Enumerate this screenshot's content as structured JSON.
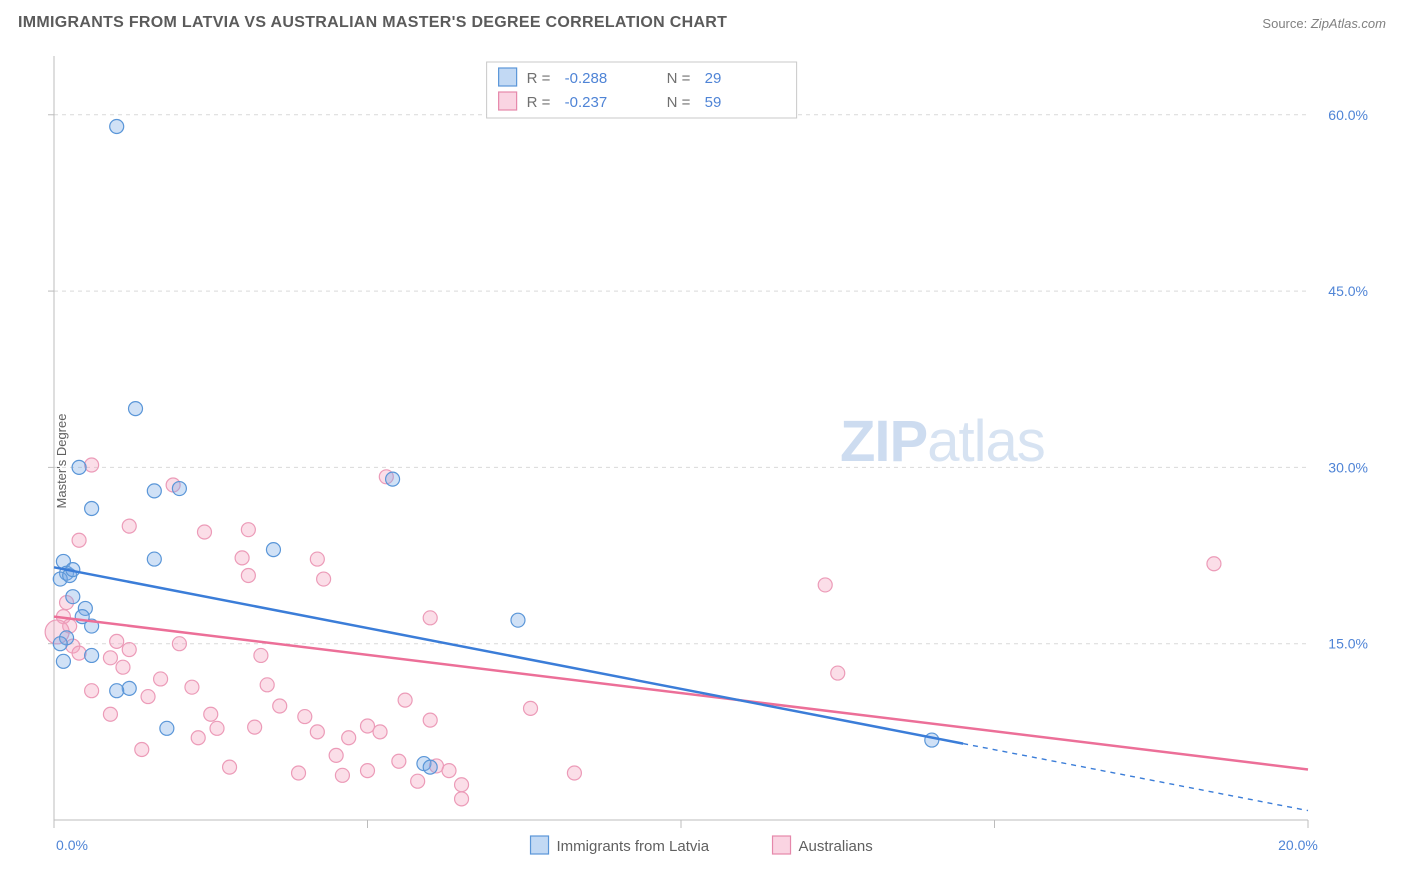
{
  "header": {
    "title": "IMMIGRANTS FROM LATVIA VS AUSTRALIAN MASTER'S DEGREE CORRELATION CHART",
    "source_label": "Source:",
    "source_value": "ZipAtlas.com"
  },
  "chart": {
    "type": "scatter",
    "ylabel": "Master's Degree",
    "background_color": "#ffffff",
    "grid_color": "#d9d9d9",
    "axis_color": "#bcbcbc",
    "tick_label_color": "#4f84d6",
    "xlim": [
      0,
      20
    ],
    "ylim": [
      0,
      65
    ],
    "x_ticks": [
      0,
      5,
      10,
      15,
      20
    ],
    "x_tick_labels": [
      "0.0%",
      "",
      "",
      "",
      "20.0%"
    ],
    "y_ticks": [
      15,
      30,
      45,
      60
    ],
    "y_tick_labels": [
      "15.0%",
      "30.0%",
      "45.0%",
      "60.0%"
    ],
    "watermark": {
      "zip": "ZIP",
      "atlas": "atlas",
      "color": "#d7e3f2"
    },
    "legend_top": {
      "box_stroke": "#c8c8c8",
      "series": [
        {
          "swatch": "blue",
          "r_label": "R =",
          "r_value": "-0.288",
          "n_label": "N =",
          "n_value": "29"
        },
        {
          "swatch": "pink",
          "r_label": "R =",
          "r_value": "-0.237",
          "n_label": "N =",
          "n_value": "59"
        }
      ]
    },
    "legend_bottom": {
      "series": [
        {
          "swatch": "blue",
          "label": "Immigrants from Latvia"
        },
        {
          "swatch": "pink",
          "label": "Australians"
        }
      ]
    },
    "series_blue": {
      "color_fill": "rgba(120,170,230,0.35)",
      "color_stroke": "#5a96d8",
      "marker_radius": 7,
      "trend": {
        "x1": 0.0,
        "y1": 21.5,
        "x2": 14.5,
        "y2": 6.5,
        "dash_x2": 20.0,
        "dash_y2": 0.8
      },
      "points": [
        {
          "x": 1.0,
          "y": 59.0
        },
        {
          "x": 1.3,
          "y": 35.0
        },
        {
          "x": 0.4,
          "y": 30.0
        },
        {
          "x": 0.6,
          "y": 26.5
        },
        {
          "x": 1.6,
          "y": 28.0
        },
        {
          "x": 2.0,
          "y": 28.2
        },
        {
          "x": 0.15,
          "y": 22.0
        },
        {
          "x": 0.2,
          "y": 21.0
        },
        {
          "x": 0.1,
          "y": 20.5
        },
        {
          "x": 0.25,
          "y": 20.8
        },
        {
          "x": 0.3,
          "y": 19.0
        },
        {
          "x": 0.3,
          "y": 21.3
        },
        {
          "x": 0.5,
          "y": 18.0
        },
        {
          "x": 0.6,
          "y": 16.5
        },
        {
          "x": 0.2,
          "y": 15.5
        },
        {
          "x": 0.1,
          "y": 15.0
        },
        {
          "x": 0.15,
          "y": 13.5
        },
        {
          "x": 1.2,
          "y": 11.2
        },
        {
          "x": 1.0,
          "y": 11.0
        },
        {
          "x": 1.8,
          "y": 7.8
        },
        {
          "x": 3.5,
          "y": 23.0
        },
        {
          "x": 1.6,
          "y": 22.2
        },
        {
          "x": 5.4,
          "y": 29.0
        },
        {
          "x": 7.4,
          "y": 17.0
        },
        {
          "x": 5.9,
          "y": 4.8
        },
        {
          "x": 6.0,
          "y": 4.5
        },
        {
          "x": 14.0,
          "y": 6.8
        },
        {
          "x": 0.6,
          "y": 14.0
        },
        {
          "x": 0.45,
          "y": 17.3
        }
      ]
    },
    "series_pink": {
      "color_fill": "rgba(244,160,190,0.35)",
      "color_stroke": "#ec9bb8",
      "marker_radius": 7,
      "trend": {
        "x1": 0.0,
        "y1": 17.3,
        "x2": 20.0,
        "y2": 4.3
      },
      "points": [
        {
          "x": 0.6,
          "y": 30.2
        },
        {
          "x": 1.9,
          "y": 28.5
        },
        {
          "x": 1.2,
          "y": 25.0
        },
        {
          "x": 2.4,
          "y": 24.5
        },
        {
          "x": 3.1,
          "y": 24.7
        },
        {
          "x": 0.4,
          "y": 23.8
        },
        {
          "x": 0.2,
          "y": 18.5
        },
        {
          "x": 0.15,
          "y": 17.3
        },
        {
          "x": 0.25,
          "y": 16.5
        },
        {
          "x": 0.05,
          "y": 16.0,
          "r": 12
        },
        {
          "x": 0.3,
          "y": 14.8
        },
        {
          "x": 0.4,
          "y": 14.2
        },
        {
          "x": 1.0,
          "y": 15.2
        },
        {
          "x": 0.9,
          "y": 13.8
        },
        {
          "x": 1.1,
          "y": 13.0
        },
        {
          "x": 1.2,
          "y": 14.5
        },
        {
          "x": 2.0,
          "y": 15.0
        },
        {
          "x": 1.7,
          "y": 12.0
        },
        {
          "x": 1.5,
          "y": 10.5
        },
        {
          "x": 2.2,
          "y": 11.3
        },
        {
          "x": 2.5,
          "y": 9.0
        },
        {
          "x": 2.3,
          "y": 7.0
        },
        {
          "x": 2.6,
          "y": 7.8
        },
        {
          "x": 3.0,
          "y": 22.3
        },
        {
          "x": 3.1,
          "y": 20.8
        },
        {
          "x": 4.2,
          "y": 22.2
        },
        {
          "x": 4.3,
          "y": 20.5
        },
        {
          "x": 3.3,
          "y": 14.0
        },
        {
          "x": 3.4,
          "y": 11.5
        },
        {
          "x": 3.6,
          "y": 9.7
        },
        {
          "x": 3.2,
          "y": 7.9
        },
        {
          "x": 4.0,
          "y": 8.8
        },
        {
          "x": 4.2,
          "y": 7.5
        },
        {
          "x": 4.5,
          "y": 5.5
        },
        {
          "x": 4.6,
          "y": 3.8
        },
        {
          "x": 4.7,
          "y": 7.0
        },
        {
          "x": 5.3,
          "y": 29.2
        },
        {
          "x": 5.0,
          "y": 8.0
        },
        {
          "x": 5.2,
          "y": 7.5
        },
        {
          "x": 5.6,
          "y": 10.2
        },
        {
          "x": 5.5,
          "y": 5.0
        },
        {
          "x": 5.0,
          "y": 4.2
        },
        {
          "x": 6.5,
          "y": 1.8
        },
        {
          "x": 5.8,
          "y": 3.3
        },
        {
          "x": 6.0,
          "y": 17.2
        },
        {
          "x": 6.1,
          "y": 4.6
        },
        {
          "x": 6.3,
          "y": 4.2
        },
        {
          "x": 6.0,
          "y": 8.5
        },
        {
          "x": 6.5,
          "y": 3.0
        },
        {
          "x": 7.6,
          "y": 9.5
        },
        {
          "x": 8.3,
          "y": 4.0
        },
        {
          "x": 12.3,
          "y": 20.0
        },
        {
          "x": 12.5,
          "y": 12.5
        },
        {
          "x": 18.5,
          "y": 21.8
        },
        {
          "x": 2.8,
          "y": 4.5
        },
        {
          "x": 3.9,
          "y": 4.0
        },
        {
          "x": 1.4,
          "y": 6.0
        },
        {
          "x": 0.9,
          "y": 9.0
        },
        {
          "x": 0.6,
          "y": 11.0
        }
      ]
    }
  }
}
